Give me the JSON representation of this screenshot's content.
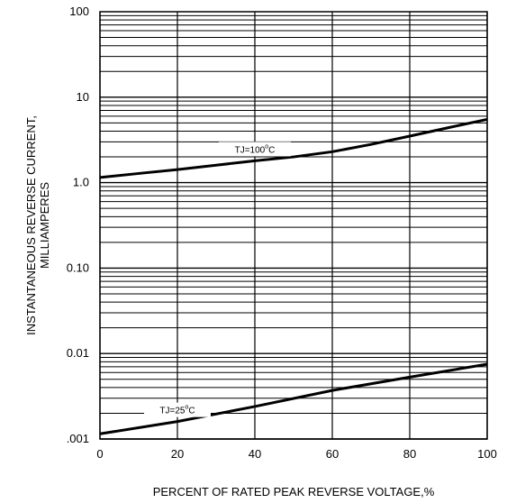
{
  "chart_data": {
    "type": "line",
    "title": "",
    "xlabel": "PERCENT OF RATED PEAK REVERSE VOLTAGE,%",
    "ylabel_lines": [
      "INSTANTANEOUS REVERSE CURRENT,",
      "MILLIAMPERES"
    ],
    "xlim": [
      0,
      100
    ],
    "ylim": [
      0.001,
      100
    ],
    "yscale": "log",
    "grid": true,
    "x_ticks": [
      0,
      20,
      40,
      60,
      80,
      100
    ],
    "x_tick_labels": [
      "0",
      "20",
      "40",
      "60",
      "80",
      "100"
    ],
    "y_ticks": [
      100,
      10,
      1,
      0.1,
      0.01,
      0.001
    ],
    "y_tick_labels": [
      "100",
      "10",
      "1.0",
      "0.10",
      "0.01",
      ".001"
    ],
    "series": [
      {
        "label_text": "TJ=100",
        "label_sup": "o",
        "label_unit": "C",
        "x": [
          0,
          10,
          20,
          30,
          40,
          50,
          60,
          70,
          80,
          90,
          100
        ],
        "y": [
          1.15,
          1.28,
          1.42,
          1.6,
          1.8,
          2.0,
          2.3,
          2.8,
          3.5,
          4.4,
          5.5
        ]
      },
      {
        "label_text": "TJ=25",
        "label_sup": "o",
        "label_unit": "C",
        "x": [
          0,
          20,
          40,
          60,
          80,
          100
        ],
        "y": [
          0.00115,
          0.0016,
          0.0024,
          0.0037,
          0.0053,
          0.0075
        ]
      }
    ]
  }
}
